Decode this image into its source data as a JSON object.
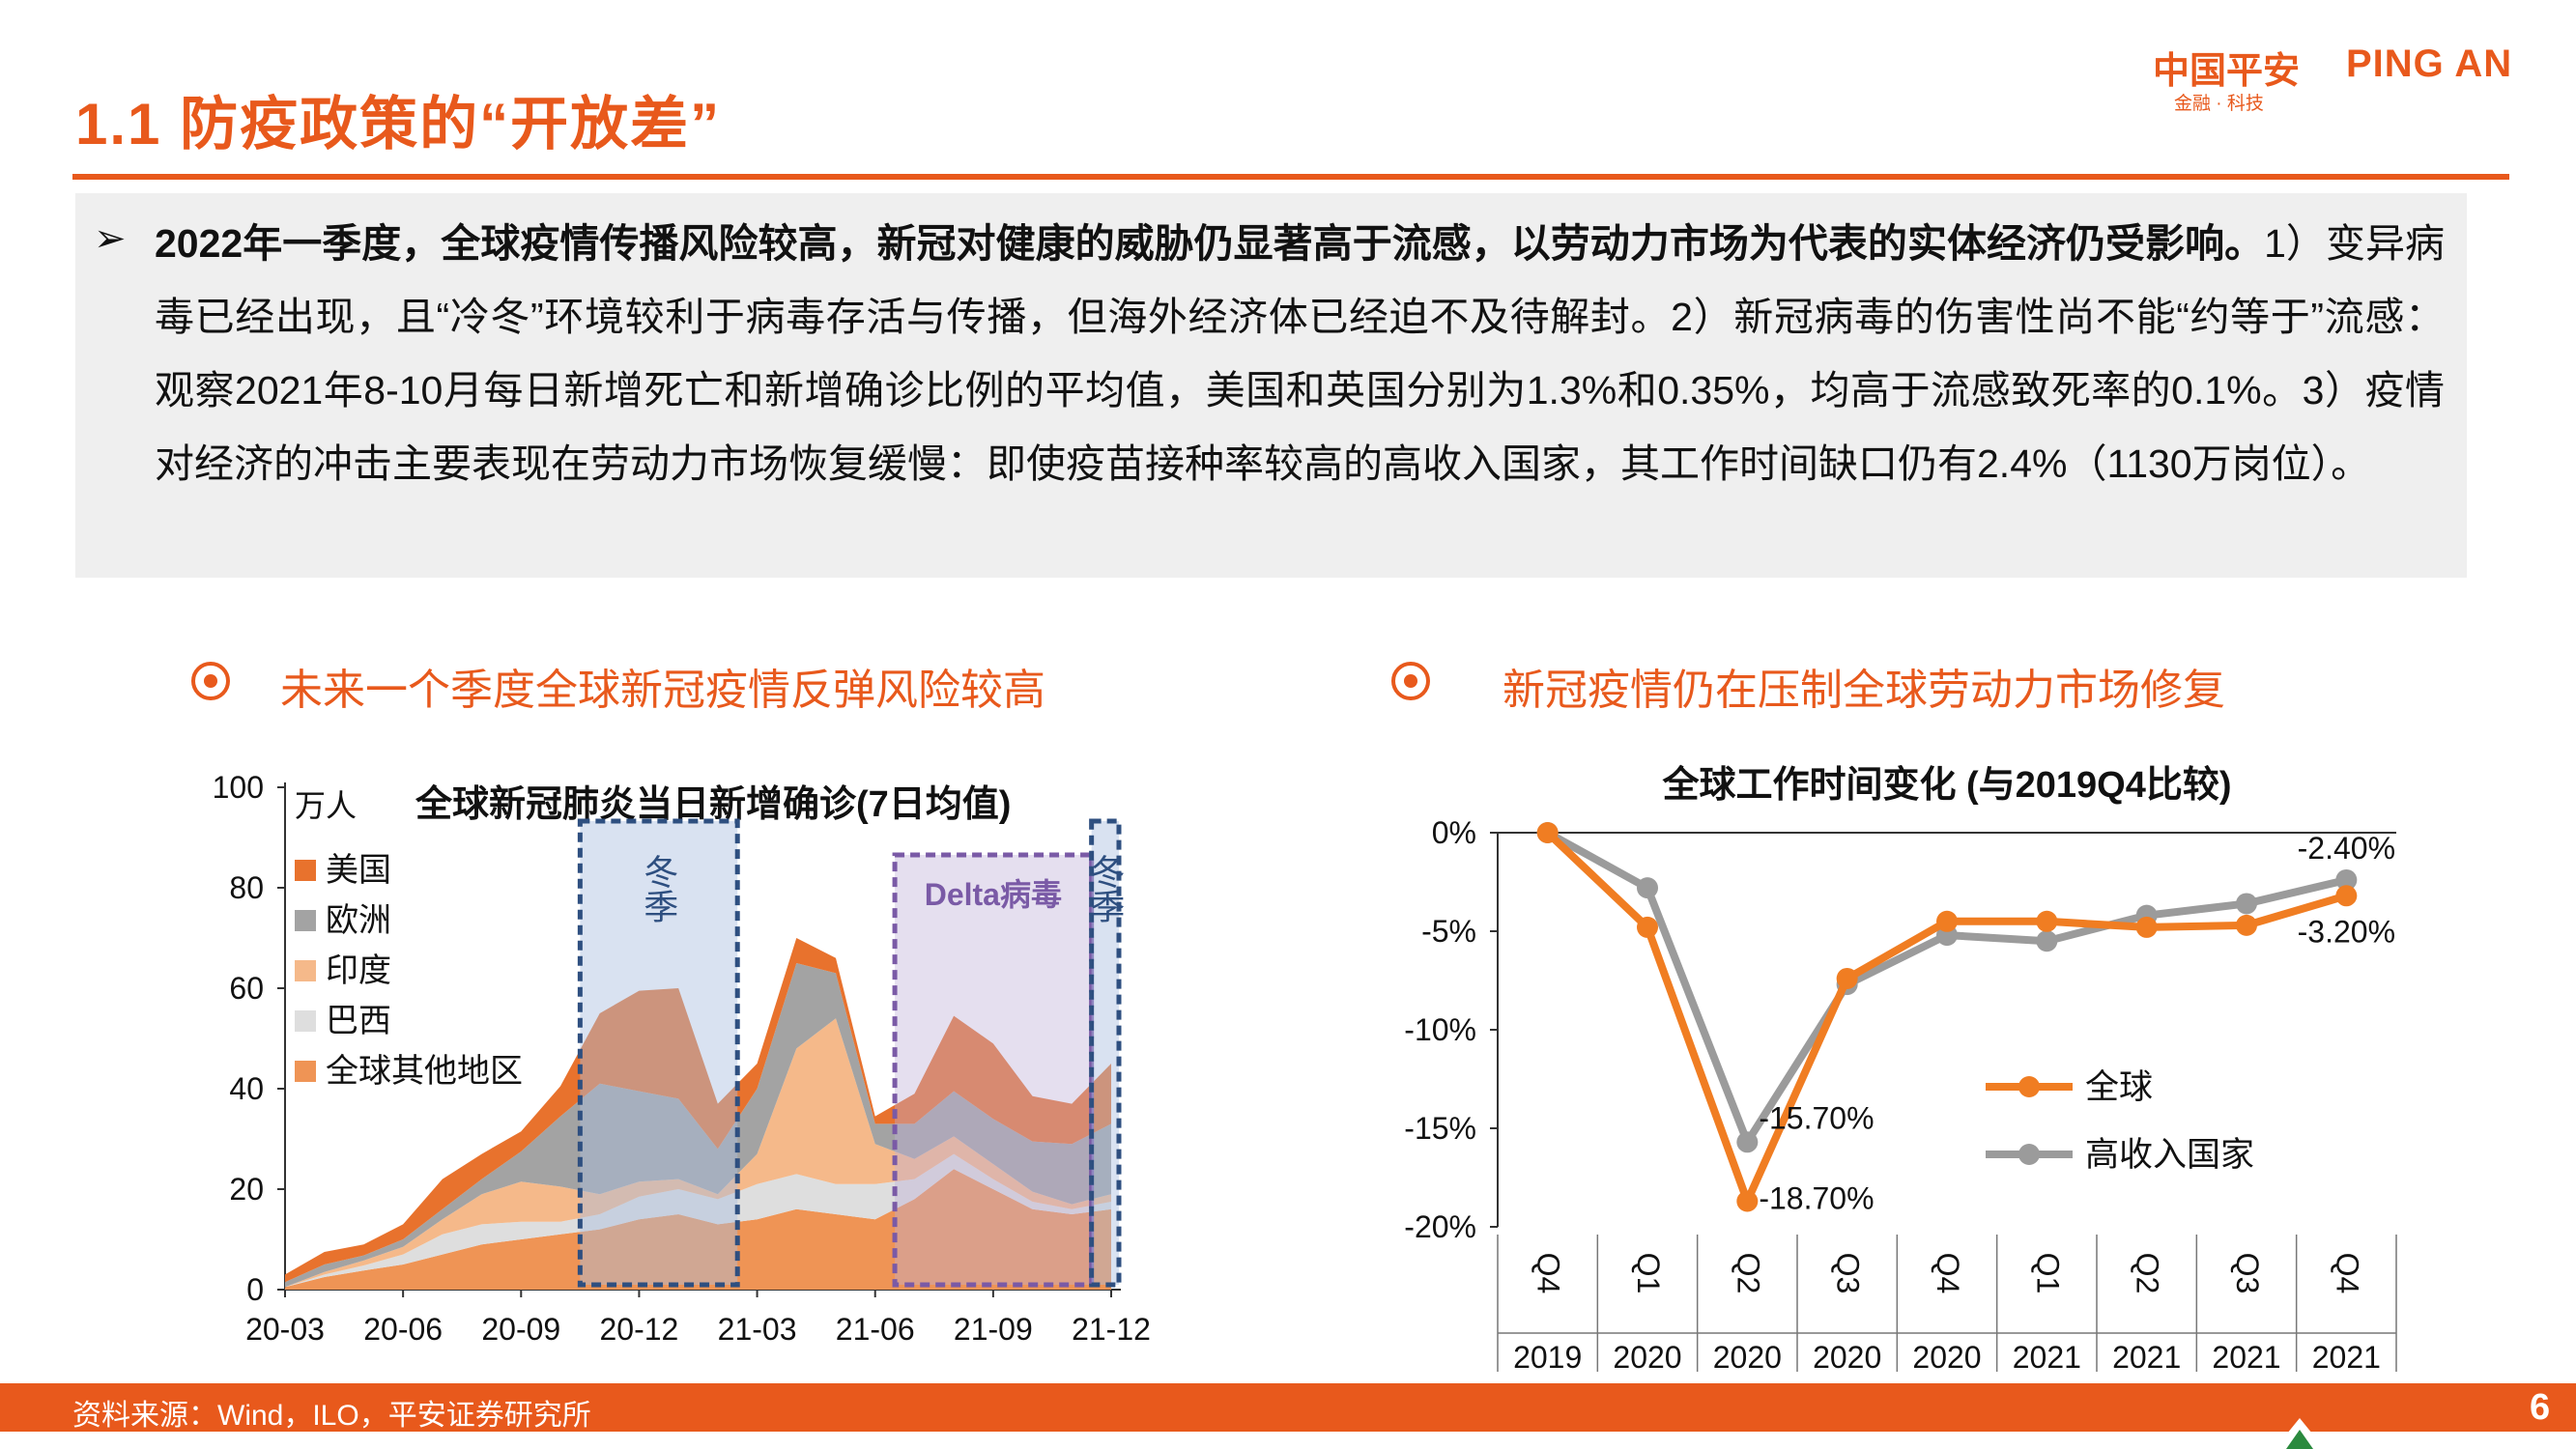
{
  "header": {
    "title": "1.1 防疫政策的“开放差”",
    "logo_cn": "中国平安",
    "logo_en": "PING AN",
    "logo_sub": "金融 · 科技"
  },
  "summary": {
    "bullet": "➢",
    "lead": "2022年一季度，全球疫情传播风险较高，新冠对健康的威胁仍显著高于流感，以劳动力市场为代表的实体经济仍受影响。",
    "body": "1）变异病毒已经出现，且“冷冬”环境较利于病毒存活与传播，但海外经济体已经迫不及待解封。2）新冠病毒的伤害性尚不能“约等于”流感：观察2021年8-10月每日新增死亡和新增确诊比例的平均值，美国和英国分别为1.3%和0.35%，均高于流感致死率的0.1%。3）疫情对经济的冲击主要表现在劳动力市场恢复缓慢：即使疫苗接种率较高的高收入国家，其工作时间缺口仍有2.4%（1130万岗位）。"
  },
  "sections": {
    "left_heading": "未来一个季度全球新冠疫情反弹风险较高",
    "right_heading": "新冠疫情仍在压制全球劳动力市场修复"
  },
  "colors": {
    "accent": "#e8591c",
    "usa": "#e8722d",
    "europe": "#a3a3a3",
    "india": "#f5b98a",
    "brazil": "#dedede",
    "other": "#ef9455",
    "global_line": "#f07d22",
    "high_income_line": "#9b9b9b",
    "winter_box": "#2e4f80",
    "delta_box": "#7a5aa6"
  },
  "chart_data": [
    {
      "type": "area",
      "title": "全球新冠肺炎当日新增确诊(7日均值)",
      "ylabel": "万人",
      "ylim": [
        0,
        100
      ],
      "yticks": [
        "0",
        "20",
        "40",
        "60",
        "80",
        "100"
      ],
      "xticks": [
        "20-03",
        "20-06",
        "20-09",
        "20-12",
        "21-03",
        "21-06",
        "21-09",
        "21-12"
      ],
      "x": [
        "20-03",
        "20-04",
        "20-05",
        "20-06",
        "20-07",
        "20-08",
        "20-09",
        "20-10",
        "20-11",
        "20-12",
        "21-01",
        "21-02",
        "21-03",
        "21-04",
        "21-05",
        "21-06",
        "21-07",
        "21-08",
        "21-09",
        "21-10",
        "21-11",
        "21-12"
      ],
      "stack_order_bottom_to_top": [
        "全球其他地区",
        "巴西",
        "印度",
        "欧洲",
        "美国"
      ],
      "series": [
        {
          "name": "美国",
          "color_key": "usa",
          "values": [
            1.5,
            2.5,
            2.2,
            3,
            6,
            5,
            4,
            6,
            14,
            20,
            22,
            9,
            5,
            5,
            3,
            1.5,
            6,
            15,
            15,
            9,
            8,
            12
          ]
        },
        {
          "name": "欧洲",
          "color_key": "europe",
          "values": [
            1,
            1.5,
            1,
            1.5,
            2,
            3,
            6,
            14,
            22,
            18,
            16,
            9,
            13,
            17,
            9,
            4,
            7,
            9,
            9,
            10,
            12,
            14
          ]
        },
        {
          "name": "印度",
          "color_key": "india",
          "values": [
            0,
            0.5,
            1,
            1.5,
            3,
            6,
            8,
            7,
            4,
            3,
            2,
            1,
            6,
            25,
            33,
            8,
            4,
            3.5,
            3,
            2,
            1,
            1.5
          ]
        },
        {
          "name": "巴西",
          "color_key": "brazil",
          "values": [
            0,
            0.5,
            1,
            2,
            4,
            4,
            3.5,
            2.5,
            3,
            4.5,
            5,
            5,
            7,
            7,
            6,
            7,
            4,
            3,
            2,
            1.5,
            1,
            1.5
          ]
        },
        {
          "name": "全球其他地区",
          "color_key": "other",
          "values": [
            0.5,
            2.5,
            3.8,
            5,
            7,
            9,
            10,
            11,
            12,
            14,
            15,
            13,
            14,
            16,
            15,
            14,
            18,
            24,
            20,
            16,
            15,
            16
          ]
        }
      ],
      "shaded_periods": [
        {
          "label": "冬季",
          "from": "20-11",
          "to": "21-02",
          "style": "winter"
        },
        {
          "label": "Delta病毒",
          "from": "21-07",
          "to": "21-11",
          "style": "delta"
        },
        {
          "label": "冬季",
          "from": "21-12",
          "to": "21-12",
          "style": "winter"
        }
      ]
    },
    {
      "type": "line",
      "title": "全球工作时间变化 (与2019Q4比较)",
      "ylim": [
        -20,
        0
      ],
      "yticks": [
        "0%",
        "-5%",
        "-10%",
        "-15%",
        "-20%"
      ],
      "categories": [
        {
          "quarter": "Q4",
          "year": "2019"
        },
        {
          "quarter": "Q1",
          "year": "2020"
        },
        {
          "quarter": "Q2",
          "year": "2020"
        },
        {
          "quarter": "Q3",
          "year": "2020"
        },
        {
          "quarter": "Q4",
          "year": "2020"
        },
        {
          "quarter": "Q1",
          "year": "2021"
        },
        {
          "quarter": "Q2",
          "year": "2021"
        },
        {
          "quarter": "Q3",
          "year": "2021"
        },
        {
          "quarter": "Q4",
          "year": "2021"
        }
      ],
      "series": [
        {
          "name": "全球",
          "color_key": "global_line",
          "values": [
            0,
            -4.8,
            -18.7,
            -7.4,
            -4.5,
            -4.5,
            -4.8,
            -4.7,
            -3.2
          ]
        },
        {
          "name": "高收入国家",
          "color_key": "high_income_line",
          "values": [
            0,
            -2.8,
            -15.7,
            -7.7,
            -5.2,
            -5.5,
            -4.2,
            -3.6,
            -2.4
          ]
        }
      ],
      "annotations": [
        {
          "text": "-2.40%",
          "series": 1,
          "index": 8
        },
        {
          "text": "-3.20%",
          "series": 0,
          "index": 8
        },
        {
          "text": "-15.70%",
          "series": 1,
          "index": 2
        },
        {
          "text": "-18.70%",
          "series": 0,
          "index": 2
        }
      ]
    }
  ],
  "footer": {
    "source": "资料来源：Wind，ILO，平安证券研究所",
    "page": "6"
  }
}
